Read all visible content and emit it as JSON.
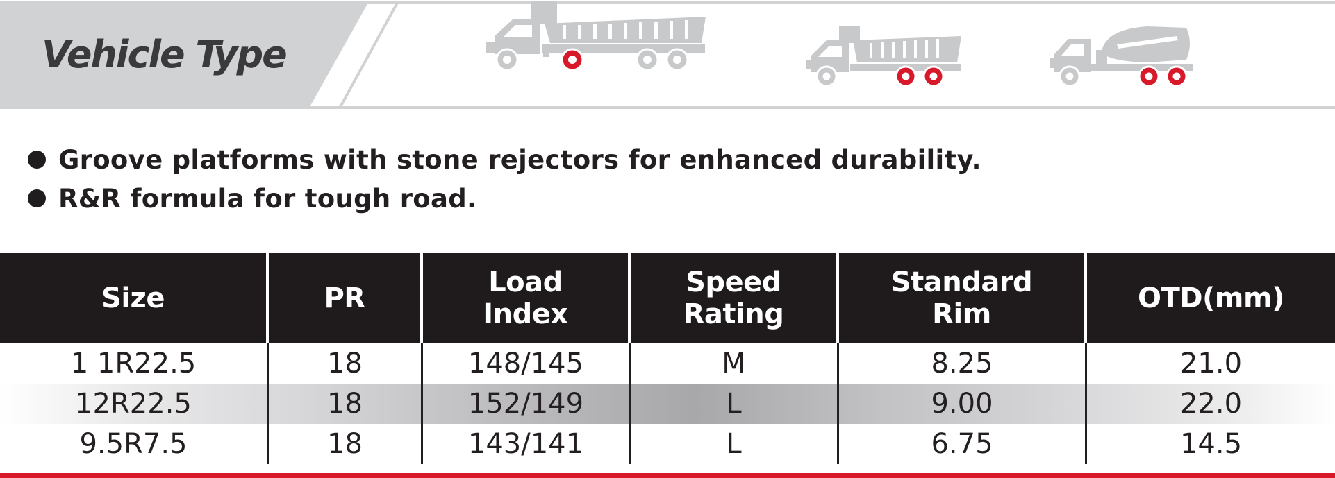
{
  "header": {
    "label": "Vehicle Type",
    "vehicles": [
      "dump-truck-long-icon",
      "dump-truck-short-icon",
      "cement-mixer-truck-icon"
    ],
    "colors": {
      "band": "#d1d2d4",
      "icon": "#c8c9cb",
      "wheel_highlight": "#d7192a"
    }
  },
  "features": [
    "Groove platforms with stone rejectors for enhanced durability.",
    "R&R formula for tough road."
  ],
  "table": {
    "headers": [
      "Size",
      "PR",
      "Load\nIndex",
      "Speed\nRating",
      "Standard\nRim",
      "OTD(mm)"
    ],
    "rows": [
      [
        "1 1R22.5",
        "18",
        "148/145",
        "M",
        "8.25",
        "21.0"
      ],
      [
        "12R22.5",
        "18",
        "152/149",
        "L",
        "9.00",
        "22.0"
      ],
      [
        "9.5R7.5",
        "18",
        "143/141",
        "L",
        "6.75",
        "14.5"
      ]
    ],
    "colors": {
      "header_bg": "#1f1b1c",
      "bottom_rule": "#d7192a"
    }
  }
}
